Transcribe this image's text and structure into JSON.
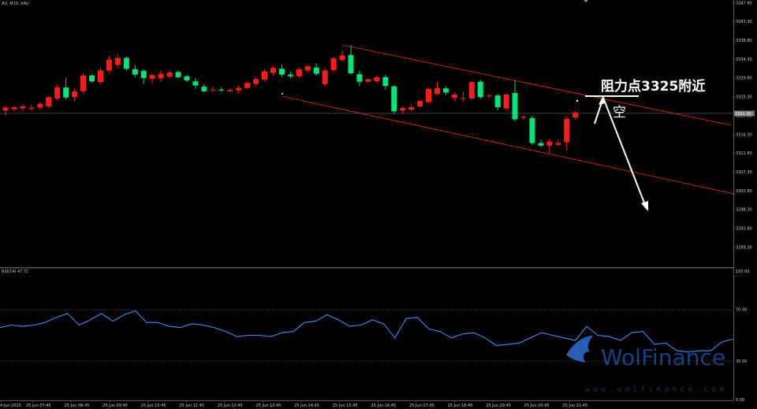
{
  "chart_title": "AU, M15: XAU",
  "indicator_title": "RSI(14) 47.71",
  "annotation_resistance": "阻力点3325附近",
  "annotation_short": "空",
  "watermark": {
    "brand": "WolFinance",
    "url": "www.wolfinance.com"
  },
  "colors": {
    "bull": "#ff1a1a",
    "bear": "#00e676",
    "rsi": "#3c8cff",
    "channel": "#ff2020",
    "background": "#000000",
    "arrow": "#ffffff"
  },
  "chart_data": [
    {
      "type": "candlestick",
      "symbol": "XAU",
      "timeframe": "M15",
      "price_axis": {
        "range": [
          3285,
          3349
        ],
        "ticks": [
          "3347.80",
          "3343.30",
          "3338.80",
          "3334.30",
          "3329.80",
          "3325.30",
          "3320.80",
          "3316.30",
          "3311.80",
          "3307.30",
          "3302.80",
          "3298.30",
          "3293.80",
          "3289.30"
        ]
      },
      "time_labels": [
        "4 Jun 2025",
        "25 Jun 07:45",
        "25 Jun 08:45",
        "25 Jun 09:45",
        "25 Jun 10:45",
        "25 Jun 11:45",
        "25 Jun 12:45",
        "25 Jun 13:45",
        "25 Jun 14:45",
        "25 Jun 15:45",
        "25 Jun 16:45",
        "25 Jun 17:45",
        "25 Jun 18:45",
        "25 Jun 19:45",
        "25 Jun 20:45",
        "25 Jun 21:45"
      ],
      "current_price": "3321.30",
      "ohlc": [
        {
          "o": 3322.0,
          "h": 3323.2,
          "l": 3320.8,
          "c": 3322.7
        },
        {
          "o": 3322.3,
          "h": 3323.2,
          "l": 3321.9,
          "c": 3322.8
        },
        {
          "o": 3322.5,
          "h": 3323.6,
          "l": 3321.8,
          "c": 3323.0
        },
        {
          "o": 3322.4,
          "h": 3323.4,
          "l": 3321.9,
          "c": 3322.7
        },
        {
          "o": 3322.7,
          "h": 3324.0,
          "l": 3322.2,
          "c": 3323.6
        },
        {
          "o": 3323.0,
          "h": 3325.6,
          "l": 3322.5,
          "c": 3325.2
        },
        {
          "o": 3324.9,
          "h": 3328.3,
          "l": 3324.4,
          "c": 3327.5
        },
        {
          "o": 3327.5,
          "h": 3329.8,
          "l": 3324.6,
          "c": 3325.1
        },
        {
          "o": 3325.2,
          "h": 3327.3,
          "l": 3324.2,
          "c": 3326.6
        },
        {
          "o": 3326.6,
          "h": 3330.9,
          "l": 3326.0,
          "c": 3330.4
        },
        {
          "o": 3330.4,
          "h": 3330.6,
          "l": 3328.7,
          "c": 3329.0
        },
        {
          "o": 3328.8,
          "h": 3332.3,
          "l": 3328.3,
          "c": 3331.6
        },
        {
          "o": 3331.6,
          "h": 3335.1,
          "l": 3331.0,
          "c": 3334.2
        },
        {
          "o": 3332.9,
          "h": 3335.6,
          "l": 3332.1,
          "c": 3334.6
        },
        {
          "o": 3334.6,
          "h": 3334.9,
          "l": 3331.6,
          "c": 3332.0
        },
        {
          "o": 3331.9,
          "h": 3332.9,
          "l": 3330.0,
          "c": 3330.6
        },
        {
          "o": 3331.5,
          "h": 3331.9,
          "l": 3328.4,
          "c": 3329.8
        },
        {
          "o": 3329.6,
          "h": 3330.8,
          "l": 3328.4,
          "c": 3330.5
        },
        {
          "o": 3329.7,
          "h": 3331.5,
          "l": 3328.9,
          "c": 3330.8
        },
        {
          "o": 3330.1,
          "h": 3331.7,
          "l": 3329.7,
          "c": 3331.1
        },
        {
          "o": 3331.2,
          "h": 3331.5,
          "l": 3329.7,
          "c": 3330.0
        },
        {
          "o": 3330.2,
          "h": 3330.5,
          "l": 3328.8,
          "c": 3329.2
        },
        {
          "o": 3329.0,
          "h": 3329.8,
          "l": 3327.2,
          "c": 3328.0
        },
        {
          "o": 3327.7,
          "h": 3328.3,
          "l": 3326.3,
          "c": 3326.6
        },
        {
          "o": 3326.8,
          "h": 3327.7,
          "l": 3326.3,
          "c": 3327.0
        },
        {
          "o": 3327.0,
          "h": 3327.6,
          "l": 3326.5,
          "c": 3326.8
        },
        {
          "o": 3326.6,
          "h": 3327.4,
          "l": 3326.3,
          "c": 3326.9
        },
        {
          "o": 3326.8,
          "h": 3327.9,
          "l": 3326.1,
          "c": 3327.4
        },
        {
          "o": 3327.4,
          "h": 3329.0,
          "l": 3327.1,
          "c": 3328.6
        },
        {
          "o": 3328.4,
          "h": 3330.0,
          "l": 3327.9,
          "c": 3329.5
        },
        {
          "o": 3329.4,
          "h": 3332.0,
          "l": 3329.0,
          "c": 3331.4
        },
        {
          "o": 3331.0,
          "h": 3332.6,
          "l": 3330.4,
          "c": 3332.2
        },
        {
          "o": 3332.0,
          "h": 3333.0,
          "l": 3330.0,
          "c": 3330.6
        },
        {
          "o": 3330.6,
          "h": 3331.3,
          "l": 3329.7,
          "c": 3330.2
        },
        {
          "o": 3330.2,
          "h": 3332.4,
          "l": 3329.8,
          "c": 3331.9
        },
        {
          "o": 3331.6,
          "h": 3333.0,
          "l": 3331.1,
          "c": 3332.6
        },
        {
          "o": 3332.3,
          "h": 3333.3,
          "l": 3330.3,
          "c": 3330.8
        },
        {
          "o": 3328.3,
          "h": 3332.3,
          "l": 3327.8,
          "c": 3331.6
        },
        {
          "o": 3331.7,
          "h": 3334.9,
          "l": 3331.1,
          "c": 3334.5
        },
        {
          "o": 3334.1,
          "h": 3336.4,
          "l": 3333.7,
          "c": 3335.2
        },
        {
          "o": 3335.3,
          "h": 3337.6,
          "l": 3330.7,
          "c": 3330.9
        },
        {
          "o": 3330.7,
          "h": 3331.5,
          "l": 3327.9,
          "c": 3328.9
        },
        {
          "o": 3328.9,
          "h": 3329.7,
          "l": 3328.5,
          "c": 3329.5
        },
        {
          "o": 3329.0,
          "h": 3330.3,
          "l": 3328.5,
          "c": 3330.0
        },
        {
          "o": 3330.0,
          "h": 3330.5,
          "l": 3327.0,
          "c": 3327.9
        },
        {
          "o": 3327.8,
          "h": 3328.0,
          "l": 3321.2,
          "c": 3321.8
        },
        {
          "o": 3322.0,
          "h": 3323.0,
          "l": 3321.2,
          "c": 3322.6
        },
        {
          "o": 3322.2,
          "h": 3323.8,
          "l": 3321.8,
          "c": 3322.8
        },
        {
          "o": 3323.0,
          "h": 3324.5,
          "l": 3322.8,
          "c": 3324.3
        },
        {
          "o": 3324.0,
          "h": 3327.5,
          "l": 3323.7,
          "c": 3327.2
        },
        {
          "o": 3326.0,
          "h": 3328.8,
          "l": 3325.6,
          "c": 3327.4
        },
        {
          "o": 3327.3,
          "h": 3327.8,
          "l": 3325.7,
          "c": 3326.3
        },
        {
          "o": 3325.0,
          "h": 3326.3,
          "l": 3324.2,
          "c": 3325.8
        },
        {
          "o": 3324.8,
          "h": 3326.5,
          "l": 3324.0,
          "c": 3325.0
        },
        {
          "o": 3324.9,
          "h": 3329.0,
          "l": 3324.6,
          "c": 3328.8
        },
        {
          "o": 3328.9,
          "h": 3329.3,
          "l": 3324.8,
          "c": 3325.2
        },
        {
          "o": 3325.4,
          "h": 3326.0,
          "l": 3325.0,
          "c": 3325.6
        },
        {
          "o": 3325.6,
          "h": 3325.9,
          "l": 3322.0,
          "c": 3322.8
        },
        {
          "o": 3322.5,
          "h": 3326.2,
          "l": 3322.0,
          "c": 3325.8
        },
        {
          "o": 3326.2,
          "h": 3329.3,
          "l": 3319.4,
          "c": 3319.9
        },
        {
          "o": 3320.3,
          "h": 3320.9,
          "l": 3319.8,
          "c": 3320.5
        },
        {
          "o": 3320.2,
          "h": 3320.8,
          "l": 3313.7,
          "c": 3314.2
        },
        {
          "o": 3314.2,
          "h": 3315.0,
          "l": 3313.2,
          "c": 3313.6
        },
        {
          "o": 3313.6,
          "h": 3315.3,
          "l": 3311.8,
          "c": 3314.6
        },
        {
          "o": 3313.8,
          "h": 3315.0,
          "l": 3313.5,
          "c": 3314.2
        },
        {
          "o": 3314.4,
          "h": 3320.6,
          "l": 3312.5,
          "c": 3320.0
        },
        {
          "o": 3320.3,
          "h": 3322.0,
          "l": 3319.8,
          "c": 3321.5
        }
      ]
    },
    {
      "type": "line",
      "name": "RSI(14)",
      "ylim": [
        0,
        100
      ],
      "levels": [
        70,
        30
      ],
      "axis_ticks": [
        "100.00",
        "70.00",
        "30.00",
        "0.00"
      ],
      "values": [
        56,
        58,
        57,
        58,
        60,
        64,
        67,
        58,
        62,
        67,
        61,
        66,
        69,
        60,
        60,
        57,
        56,
        59,
        58,
        56,
        53,
        49,
        50,
        50,
        49,
        52,
        53,
        60,
        61,
        66,
        62,
        57,
        58,
        62,
        59,
        48,
        63,
        64,
        55,
        53,
        48,
        51,
        52,
        48,
        42,
        43,
        44,
        48,
        52,
        50,
        48,
        46,
        57,
        50,
        49,
        46,
        52,
        53,
        43,
        44,
        38,
        37,
        38,
        38,
        45,
        47
      ]
    }
  ]
}
